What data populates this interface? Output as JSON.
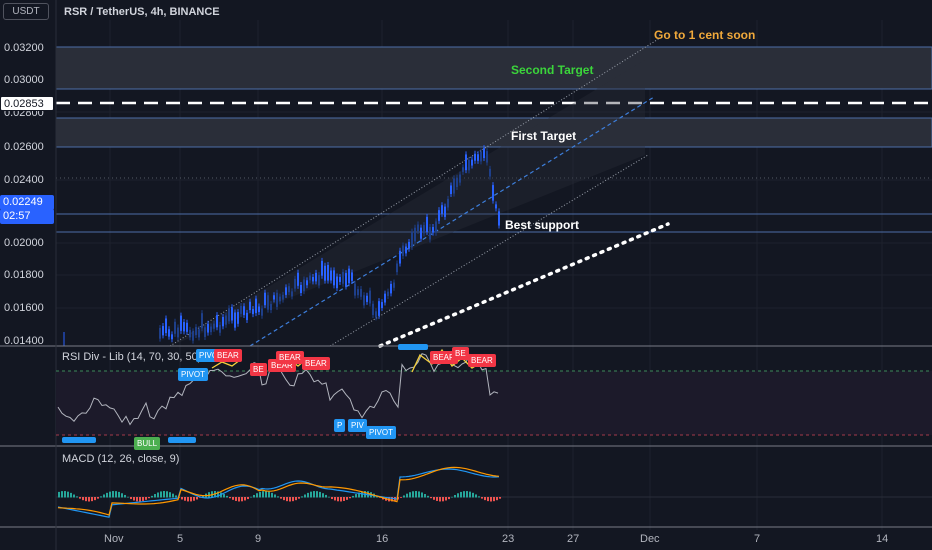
{
  "header": {
    "currency_button": "USDT",
    "symbol": "RSR / TetherUS, 4h, BINANCE"
  },
  "price_axis": [
    "0.03200",
    "0.03000",
    "0.02800",
    "0.02600",
    "0.02400",
    "0.02000",
    "0.01800",
    "0.01600",
    "0.01400"
  ],
  "price_tags": {
    "line_level": "0.02853",
    "current_price": "0.02249",
    "countdown": "02:57"
  },
  "annotations": {
    "go_to": "Go to 1 cent soon",
    "second_target": "Second Target",
    "first_target": "First Target",
    "best_support": "Best support"
  },
  "rsi_pane": {
    "title": "RSI Div - Lib (14, 70, 30, 50)",
    "signals": [
      "PIVOT",
      "PIVOT",
      "BEAR",
      "BE",
      "BEAR",
      "BEAR",
      "BEAR",
      "P",
      "PIV",
      "PIVOT",
      "BEAR",
      "BE",
      "BEAR",
      "BULL"
    ]
  },
  "macd_pane": {
    "title": "MACD (12, 26, close, 9)"
  },
  "time_axis": [
    "Nov",
    "5",
    "9",
    "16",
    "23",
    "27",
    "Dec",
    "7",
    "14"
  ],
  "colors": {
    "background": "#131722",
    "zone_fill": "#2a2e39",
    "zone_border": "#4c6ea8",
    "candle_up": "#2962ff",
    "candle_down": "#1e3f8a",
    "go_to_text": "#f0a93b",
    "second_target_text": "#3bd43b",
    "bear_tag": "#f23645",
    "pivot_tag": "#2196f3",
    "bull_tag": "#4caf50"
  }
}
